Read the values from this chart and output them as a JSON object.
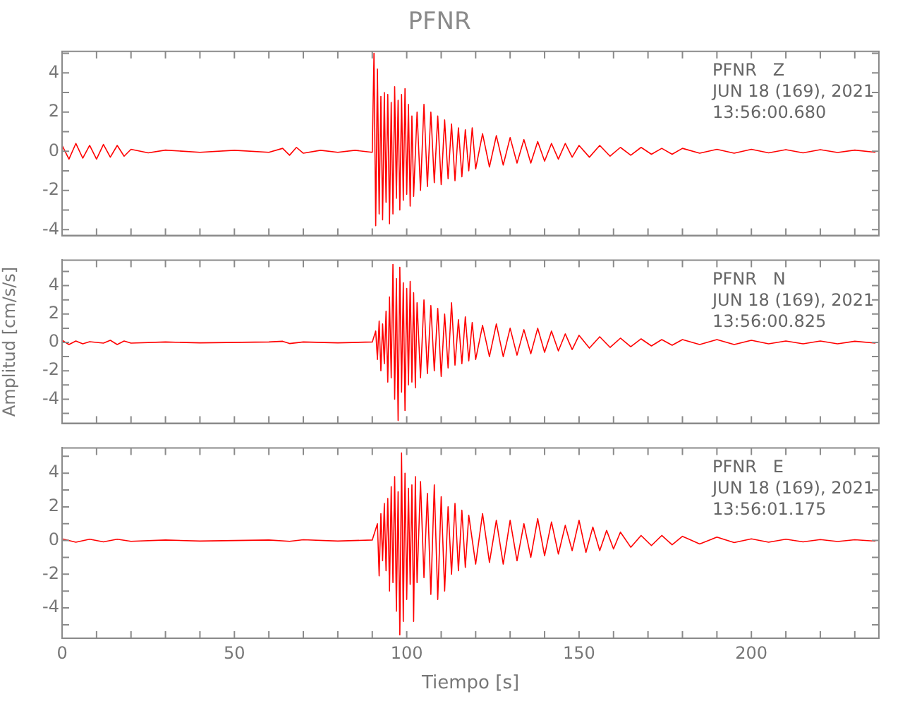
{
  "chart_data": [
    {
      "type": "line",
      "title": "PFNR",
      "annotations": [
        "PFNR   Z",
        "JUN 18 (169), 2021",
        "13:56:00.680"
      ],
      "tick_labels": "y",
      "xlim": [
        0,
        237
      ],
      "ylim": [
        -4.3,
        5.1
      ],
      "xticks": [
        0,
        {
          "value": 10,
          "label": null
        },
        {
          "value": 20,
          "label": null
        },
        {
          "value": 30,
          "label": null
        },
        {
          "value": 40,
          "label": null
        },
        50,
        {
          "value": 60,
          "label": null
        },
        {
          "value": 70,
          "label": null
        },
        {
          "value": 80,
          "label": null
        },
        {
          "value": 90,
          "label": null
        },
        100,
        {
          "value": 110,
          "label": null
        },
        {
          "value": 120,
          "label": null
        },
        {
          "value": 130,
          "label": null
        },
        {
          "value": 140,
          "label": null
        },
        150,
        {
          "value": 160,
          "label": null
        },
        {
          "value": 170,
          "label": null
        },
        {
          "value": 180,
          "label": null
        },
        {
          "value": 190,
          "label": null
        },
        200,
        {
          "value": 210,
          "label": null
        },
        {
          "value": 220,
          "label": null
        },
        {
          "value": 230,
          "label": null
        }
      ],
      "yticks": [
        -4,
        {
          "value": -3,
          "label": null
        },
        -2,
        {
          "value": -1,
          "label": null
        },
        0,
        {
          "value": 1,
          "label": null
        },
        2,
        {
          "value": 3,
          "label": null
        },
        4,
        {
          "value": 5,
          "label": null
        }
      ],
      "series": [
        {
          "color": "#ff0000",
          "x": [
            0,
            2,
            4,
            6,
            8,
            10,
            12,
            14,
            16,
            18,
            20,
            25,
            30,
            40,
            50,
            60,
            64,
            66,
            68,
            70,
            75,
            80,
            85,
            90,
            90.5,
            91,
            91.5,
            92,
            92.5,
            93,
            93.5,
            94,
            94.5,
            95,
            95.5,
            96,
            96.5,
            97,
            97.5,
            98,
            98.5,
            99,
            99.5,
            100,
            100.5,
            101,
            101.5,
            102,
            103,
            104,
            105,
            106,
            107,
            108,
            109,
            110,
            111,
            112,
            113,
            114,
            115,
            116,
            117,
            118,
            119,
            120,
            122,
            124,
            126,
            128,
            130,
            132,
            134,
            136,
            138,
            140,
            142,
            144,
            146,
            148,
            150,
            153,
            156,
            159,
            162,
            165,
            168,
            171,
            174,
            177,
            180,
            185,
            190,
            195,
            200,
            205,
            210,
            215,
            220,
            225,
            230,
            236
          ],
          "values": [
            0.3,
            -0.4,
            0.4,
            -0.35,
            0.3,
            -0.4,
            0.35,
            -0.3,
            0.3,
            -0.25,
            0.1,
            -0.08,
            0.06,
            -0.05,
            0.05,
            -0.05,
            0.15,
            -0.2,
            0.2,
            -0.1,
            0.05,
            -0.05,
            0.05,
            -0.05,
            5.0,
            -3.8,
            4.2,
            -3.2,
            2.8,
            -3.5,
            3.0,
            -2.6,
            2.9,
            -3.7,
            2.5,
            -3.2,
            3.3,
            -2.4,
            2.6,
            -3.0,
            2.9,
            -2.5,
            3.2,
            -2.2,
            2.4,
            -2.8,
            1.8,
            -2.3,
            2.0,
            -2.0,
            2.4,
            -1.8,
            2.0,
            -1.6,
            1.8,
            -1.7,
            1.6,
            -1.4,
            1.4,
            -1.5,
            1.2,
            -1.3,
            1.1,
            -1.0,
            1.2,
            -0.9,
            0.9,
            -0.8,
            0.8,
            -0.7,
            0.7,
            -0.6,
            0.6,
            -0.6,
            0.5,
            -0.5,
            0.4,
            -0.4,
            0.4,
            -0.3,
            0.3,
            -0.3,
            0.3,
            -0.25,
            0.2,
            -0.2,
            0.2,
            -0.15,
            0.15,
            -0.15,
            0.15,
            -0.1,
            0.1,
            -0.1,
            0.1,
            -0.08,
            0.08,
            -0.08,
            0.08,
            -0.06,
            0.06,
            -0.05
          ]
        }
      ]
    },
    {
      "type": "line",
      "ylabel": "Amplitud [cm/s/s]",
      "annotations": [
        "PFNR   N",
        "JUN 18 (169), 2021",
        "13:56:00.825"
      ],
      "tick_labels": "y",
      "xlim": [
        0,
        237
      ],
      "ylim": [
        -5.7,
        5.8
      ],
      "xticks": [
        0,
        {
          "value": 10,
          "label": null
        },
        {
          "value": 20,
          "label": null
        },
        {
          "value": 30,
          "label": null
        },
        {
          "value": 40,
          "label": null
        },
        50,
        {
          "value": 60,
          "label": null
        },
        {
          "value": 70,
          "label": null
        },
        {
          "value": 80,
          "label": null
        },
        {
          "value": 90,
          "label": null
        },
        100,
        {
          "value": 110,
          "label": null
        },
        {
          "value": 120,
          "label": null
        },
        {
          "value": 130,
          "label": null
        },
        {
          "value": 140,
          "label": null
        },
        150,
        {
          "value": 160,
          "label": null
        },
        {
          "value": 170,
          "label": null
        },
        {
          "value": 180,
          "label": null
        },
        {
          "value": 190,
          "label": null
        },
        200,
        {
          "value": 210,
          "label": null
        },
        {
          "value": 220,
          "label": null
        },
        {
          "value": 230,
          "label": null
        }
      ],
      "yticks": [
        {
          "value": -5,
          "label": null
        },
        -4,
        {
          "value": -3,
          "label": null
        },
        -2,
        {
          "value": -1,
          "label": null
        },
        0,
        {
          "value": 1,
          "label": null
        },
        2,
        {
          "value": 3,
          "label": null
        },
        4,
        {
          "value": 5,
          "label": null
        }
      ],
      "series": [
        {
          "color": "#ff0000",
          "x": [
            0,
            2,
            4,
            6,
            8,
            12,
            14,
            16,
            18,
            20,
            30,
            40,
            60,
            64,
            66,
            70,
            80,
            90,
            91,
            91.5,
            92,
            92.5,
            93,
            93.5,
            94,
            94.5,
            95,
            95.5,
            96,
            96.5,
            97,
            97.5,
            98,
            98.5,
            99,
            99.5,
            100,
            100.5,
            101,
            101.5,
            102,
            102.5,
            103,
            104,
            105,
            106,
            107,
            108,
            109,
            110,
            111,
            112,
            113,
            114,
            115,
            116,
            117,
            118,
            119,
            120,
            122,
            124,
            126,
            128,
            130,
            132,
            134,
            136,
            138,
            140,
            142,
            144,
            146,
            148,
            150,
            153,
            156,
            159,
            162,
            165,
            168,
            171,
            174,
            177,
            180,
            185,
            190,
            195,
            200,
            205,
            210,
            215,
            220,
            225,
            230,
            236
          ],
          "values": [
            0.15,
            -0.15,
            0.1,
            -0.1,
            0.05,
            -0.05,
            0.15,
            -0.15,
            0.1,
            -0.05,
            0.03,
            -0.03,
            0.03,
            0.08,
            -0.08,
            0.03,
            -0.03,
            0.03,
            0.8,
            -1.2,
            1.5,
            -2.0,
            1.3,
            -1.5,
            2.2,
            -2.8,
            3.2,
            -2.5,
            5.5,
            -4.0,
            4.5,
            -5.5,
            5.3,
            -3.5,
            4.2,
            -4.8,
            3.8,
            -3.0,
            4.3,
            -2.8,
            3.5,
            -3.2,
            2.8,
            -2.5,
            3.0,
            -2.2,
            2.6,
            -2.0,
            2.4,
            -2.4,
            2.0,
            -1.8,
            2.8,
            -1.6,
            1.6,
            -1.5,
            1.8,
            -1.3,
            1.4,
            -1.2,
            1.2,
            -1.0,
            1.3,
            -1.0,
            1.0,
            -0.9,
            0.9,
            -0.8,
            1.0,
            -0.7,
            0.8,
            -0.6,
            0.6,
            -0.5,
            0.5,
            -0.4,
            0.4,
            -0.35,
            0.3,
            -0.3,
            0.25,
            -0.25,
            0.2,
            -0.2,
            0.2,
            -0.15,
            0.2,
            -0.15,
            0.15,
            -0.1,
            0.1,
            -0.1,
            0.1,
            -0.1,
            0.08,
            -0.05
          ]
        }
      ]
    },
    {
      "type": "line",
      "xlabel": "Tiempo [s]",
      "annotations": [
        "PFNR   E",
        "JUN 18 (169), 2021",
        "13:56:01.175"
      ],
      "xlim": [
        0,
        237
      ],
      "ylim": [
        -5.8,
        5.5
      ],
      "xticks": [
        0,
        {
          "value": 10,
          "label": null
        },
        {
          "value": 20,
          "label": null
        },
        {
          "value": 30,
          "label": null
        },
        {
          "value": 40,
          "label": null
        },
        50,
        {
          "value": 60,
          "label": null
        },
        {
          "value": 70,
          "label": null
        },
        {
          "value": 80,
          "label": null
        },
        {
          "value": 90,
          "label": null
        },
        100,
        {
          "value": 110,
          "label": null
        },
        {
          "value": 120,
          "label": null
        },
        {
          "value": 130,
          "label": null
        },
        {
          "value": 140,
          "label": null
        },
        150,
        {
          "value": 160,
          "label": null
        },
        {
          "value": 170,
          "label": null
        },
        {
          "value": 180,
          "label": null
        },
        {
          "value": 190,
          "label": null
        },
        200,
        {
          "value": 210,
          "label": null
        },
        {
          "value": 220,
          "label": null
        },
        {
          "value": 230,
          "label": null
        }
      ],
      "yticks": [
        {
          "value": -5,
          "label": null
        },
        -4,
        {
          "value": -3,
          "label": null
        },
        -2,
        {
          "value": -1,
          "label": null
        },
        0,
        {
          "value": 1,
          "label": null
        },
        2,
        {
          "value": 3,
          "label": null
        },
        4,
        {
          "value": 5,
          "label": null
        }
      ],
      "series": [
        {
          "color": "#ff0000",
          "x": [
            0,
            4,
            8,
            12,
            16,
            20,
            30,
            40,
            60,
            66,
            70,
            80,
            90,
            91.5,
            92,
            92.5,
            93,
            93.5,
            94,
            94.5,
            95,
            95.5,
            96,
            96.5,
            97,
            97.5,
            98,
            98.5,
            99,
            99.5,
            100,
            100.5,
            101,
            101.5,
            102,
            102.5,
            103,
            104,
            105,
            106,
            107,
            108,
            109,
            110,
            111,
            112,
            113,
            114,
            115,
            116,
            117,
            118,
            120,
            122,
            124,
            126,
            128,
            130,
            132,
            134,
            136,
            138,
            140,
            142,
            144,
            146,
            148,
            150,
            152,
            154,
            156,
            158,
            160,
            162,
            165,
            168,
            171,
            174,
            177,
            180,
            185,
            190,
            195,
            200,
            205,
            210,
            215,
            220,
            225,
            230,
            236
          ],
          "values": [
            0.1,
            -0.1,
            0.08,
            -0.08,
            0.08,
            -0.05,
            0.03,
            -0.03,
            0.03,
            -0.05,
            0.05,
            -0.03,
            0.03,
            1.0,
            -2.1,
            1.6,
            -1.2,
            2.2,
            -1.8,
            2.5,
            -3.0,
            3.2,
            -2.5,
            3.8,
            -4.2,
            2.9,
            -5.6,
            5.2,
            -4.8,
            4.0,
            -3.5,
            3.1,
            -2.6,
            3.3,
            -4.8,
            3.8,
            -2.5,
            3.5,
            -2.2,
            2.8,
            -3.2,
            3.3,
            -3.5,
            2.6,
            -3.0,
            2.0,
            -2.0,
            2.2,
            -1.8,
            1.8,
            -1.6,
            1.5,
            -1.4,
            1.6,
            -1.3,
            1.2,
            -1.4,
            1.2,
            -1.2,
            1.0,
            -1.0,
            1.3,
            -0.9,
            1.1,
            -0.8,
            0.9,
            -0.6,
            1.2,
            -0.7,
            0.8,
            -0.6,
            0.6,
            -0.5,
            0.5,
            -0.4,
            0.3,
            -0.3,
            0.3,
            -0.25,
            0.25,
            -0.2,
            0.2,
            -0.12,
            0.1,
            -0.1,
            0.08,
            -0.08,
            0.06,
            -0.06,
            0.05,
            -0.04
          ]
        }
      ]
    }
  ]
}
